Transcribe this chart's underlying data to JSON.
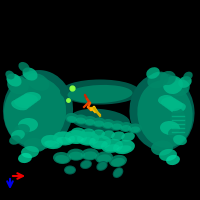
{
  "background_color": "#000000",
  "figure_size": [
    2.0,
    2.0
  ],
  "dpi": 100,
  "protein_dark": "#006050",
  "protein_mid": "#008868",
  "protein_bright": "#00b888",
  "protein_highlight": "#00d8a0",
  "ligand_red": "#cc2200",
  "ligand_orange": "#ee6600",
  "ligand_yellow": "#ddbb00",
  "ion_color": "#88ff44",
  "arrow_red": "#ee0000",
  "arrow_blue": "#0000ee"
}
